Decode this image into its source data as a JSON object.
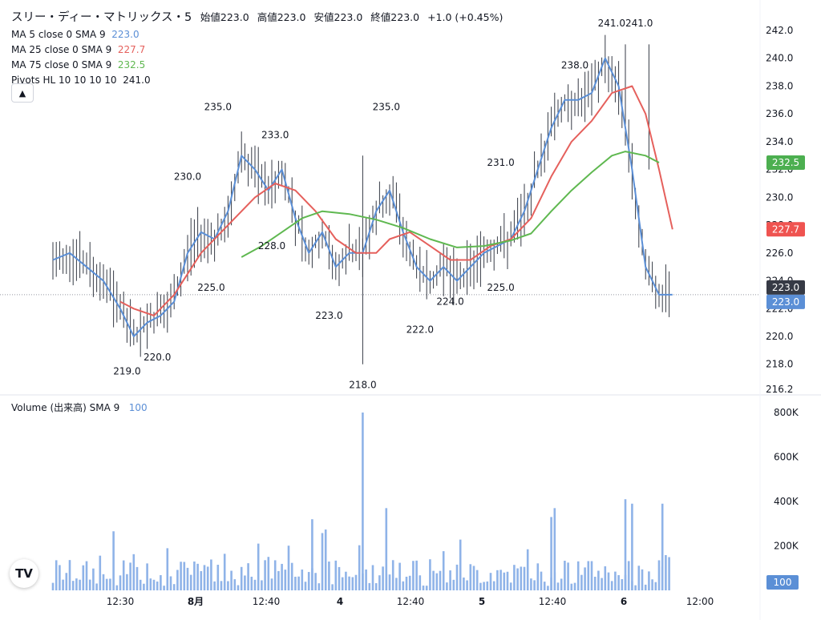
{
  "title": {
    "symbol": "スリー・ディー・マトリックス・5",
    "open_label": "始値",
    "open": "223.0",
    "high_label": "高値",
    "high": "223.0",
    "low_label": "安値",
    "low": "223.0",
    "close_label": "終値",
    "close": "223.0",
    "change": "+1.0 (+0.45%)"
  },
  "indicators": [
    {
      "label": "MA 5 close 0 SMA 9",
      "value": "223.0",
      "color": "#5b8fd6"
    },
    {
      "label": "MA 25 close 0 SMA 9",
      "value": "227.7",
      "color": "#e5605c"
    },
    {
      "label": "MA 75 close 0 SMA 9",
      "value": "232.5",
      "color": "#5fb850"
    },
    {
      "label": "Pivots HL 10 10 10 10",
      "value": "241.0",
      "color": "#131722"
    }
  ],
  "collapse_icon": "chevron-up-icon",
  "volume_legend": {
    "label": "Volume (出来高)",
    "sma": "SMA 9",
    "value": "100",
    "color": "#5b8fd6"
  },
  "chart_data": {
    "type": "candlestick",
    "price_axis": {
      "ticks": [
        "242.0",
        "240.0",
        "238.0",
        "236.0",
        "234.0",
        "232.0",
        "230.0",
        "228.0",
        "226.0",
        "224.0",
        "222.0",
        "220.0",
        "218.0",
        "216.2"
      ],
      "ylim": [
        216.2,
        242.6
      ]
    },
    "volume_axis": {
      "ticks": [
        "800K",
        "600K",
        "400K",
        "200K"
      ],
      "ylim": [
        0,
        800000
      ]
    },
    "time_axis": {
      "ticks": [
        "12:30",
        "8月",
        "12:40",
        "4",
        "12:40",
        "5",
        "12:40",
        "6",
        "12:00"
      ]
    },
    "price_labels": [
      {
        "value": "232.5",
        "color": "#4caf50"
      },
      {
        "value": "227.7",
        "color": "#ef5350"
      },
      {
        "value": "223.0",
        "color": "#363a45"
      },
      {
        "value": "223.0",
        "color": "#5b8fd6"
      }
    ],
    "volume_label": {
      "value": "100",
      "color": "#5b8fd6"
    },
    "pivots_high": [
      {
        "label": "235.0",
        "t": 49
      },
      {
        "label": "233.0",
        "t": 66
      },
      {
        "label": "230.0",
        "t": 40
      },
      {
        "label": "235.0",
        "t": 99
      },
      {
        "label": "231.0",
        "t": 133
      },
      {
        "label": "238.0",
        "t": 155
      },
      {
        "label": "241.0241.0",
        "t": 170
      }
    ],
    "pivots_low": [
      {
        "label": "219.0",
        "t": 22
      },
      {
        "label": "220.0",
        "t": 31
      },
      {
        "label": "228.0",
        "t": 65
      },
      {
        "label": "225.0",
        "t": 47
      },
      {
        "label": "223.0",
        "t": 82
      },
      {
        "label": "218.0",
        "t": 92
      },
      {
        "label": "222.0",
        "t": 109
      },
      {
        "label": "224.0",
        "t": 118
      },
      {
        "label": "225.0",
        "t": 133
      }
    ],
    "series": [
      {
        "name": "MA 5",
        "color": "#5b8fd6",
        "values": [
          [
            0,
            225.5
          ],
          [
            5,
            226
          ],
          [
            10,
            225
          ],
          [
            15,
            224
          ],
          [
            20,
            222
          ],
          [
            24,
            220
          ],
          [
            28,
            221
          ],
          [
            32,
            221.5
          ],
          [
            36,
            222.5
          ],
          [
            40,
            226
          ],
          [
            44,
            227.5
          ],
          [
            48,
            227
          ],
          [
            52,
            229
          ],
          [
            56,
            233
          ],
          [
            60,
            232
          ],
          [
            64,
            230.5
          ],
          [
            68,
            232
          ],
          [
            72,
            228.5
          ],
          [
            76,
            226
          ],
          [
            80,
            227.5
          ],
          [
            84,
            225
          ],
          [
            88,
            226
          ],
          [
            92,
            226
          ],
          [
            96,
            229
          ],
          [
            100,
            230.5
          ],
          [
            104,
            227.5
          ],
          [
            108,
            225
          ],
          [
            112,
            224
          ],
          [
            116,
            225
          ],
          [
            120,
            224
          ],
          [
            124,
            225
          ],
          [
            128,
            226
          ],
          [
            132,
            226.5
          ],
          [
            136,
            227
          ],
          [
            140,
            229
          ],
          [
            144,
            232
          ],
          [
            148,
            235
          ],
          [
            152,
            237
          ],
          [
            156,
            237
          ],
          [
            160,
            237.5
          ],
          [
            164,
            240
          ],
          [
            168,
            238
          ],
          [
            172,
            232
          ],
          [
            176,
            225
          ],
          [
            180,
            223
          ],
          [
            184,
            223
          ]
        ]
      },
      {
        "name": "MA 25",
        "color": "#e5605c",
        "values": [
          [
            20,
            222.5
          ],
          [
            24,
            222
          ],
          [
            30,
            221.5
          ],
          [
            36,
            223
          ],
          [
            44,
            226
          ],
          [
            52,
            228
          ],
          [
            60,
            230
          ],
          [
            66,
            231
          ],
          [
            72,
            230.5
          ],
          [
            78,
            229
          ],
          [
            84,
            227
          ],
          [
            90,
            226
          ],
          [
            96,
            226
          ],
          [
            100,
            227
          ],
          [
            106,
            227.5
          ],
          [
            112,
            226.5
          ],
          [
            118,
            225.5
          ],
          [
            124,
            225.5
          ],
          [
            130,
            226.5
          ],
          [
            136,
            227
          ],
          [
            142,
            228.5
          ],
          [
            148,
            231.5
          ],
          [
            154,
            234
          ],
          [
            160,
            235.5
          ],
          [
            166,
            237.5
          ],
          [
            172,
            238
          ],
          [
            176,
            236
          ],
          [
            180,
            232
          ],
          [
            184,
            227.7
          ]
        ]
      },
      {
        "name": "MA 75",
        "color": "#5fb850",
        "values": [
          [
            56,
            225.7
          ],
          [
            62,
            226.5
          ],
          [
            68,
            227.5
          ],
          [
            74,
            228.5
          ],
          [
            80,
            229
          ],
          [
            88,
            228.8
          ],
          [
            96,
            228.4
          ],
          [
            104,
            227.8
          ],
          [
            112,
            227
          ],
          [
            120,
            226.4
          ],
          [
            128,
            226.5
          ],
          [
            136,
            226.9
          ],
          [
            142,
            227.4
          ],
          [
            148,
            229
          ],
          [
            154,
            230.5
          ],
          [
            160,
            231.8
          ],
          [
            166,
            233
          ],
          [
            170,
            233.3
          ],
          [
            176,
            233
          ],
          [
            180,
            232.5
          ]
        ]
      }
    ]
  }
}
